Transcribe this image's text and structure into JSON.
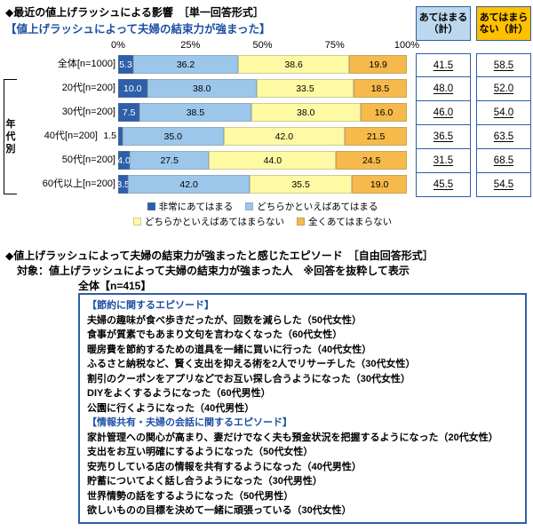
{
  "header": {
    "title": "◆最近の値上げラッシュによる影響　［単一回答形式］",
    "subtitle": "【値上げラッシュによって夫婦の結束力が強まった】"
  },
  "chart_data": {
    "type": "bar",
    "stacked": true,
    "orientation": "horizontal",
    "xlim": [
      0,
      100
    ],
    "grid": false,
    "legend_position": "bottom",
    "axis_ticks": [
      "0%",
      "25%",
      "50%",
      "75%",
      "100%"
    ],
    "group_label": "年代別",
    "categories": [
      "全体[n=1000]",
      "20代[n=200]",
      "30代[n=200]",
      "40代[n=200]",
      "50代[n=200]",
      "60代以上[n=200]"
    ],
    "series": [
      {
        "name": "非常にあてはまる",
        "color": "#2D5FAA",
        "label_color": "#FFFFFF",
        "values": [
          5.3,
          10.0,
          7.5,
          1.5,
          4.0,
          3.5
        ]
      },
      {
        "name": "どちらかといえばあてはまる",
        "color": "#9CC7EA",
        "label_color": "#000000",
        "values": [
          36.2,
          38.0,
          38.5,
          35.0,
          27.5,
          42.0
        ]
      },
      {
        "name": "どちらかといえばあてはまらない",
        "color": "#FEF9A3",
        "label_color": "#000000",
        "values": [
          38.6,
          33.5,
          38.0,
          42.0,
          44.0,
          35.5
        ]
      },
      {
        "name": "全くあてはまらない",
        "color": "#F5BA4B",
        "label_color": "#000000",
        "values": [
          19.9,
          18.5,
          16.0,
          21.5,
          24.5,
          19.0
        ]
      }
    ],
    "summary_columns": [
      {
        "header": "あてはまる（計）",
        "bg": "#BDD7EE",
        "values": [
          41.5,
          48.0,
          46.0,
          36.5,
          31.5,
          45.5
        ]
      },
      {
        "header": "あてはまらない（計）",
        "bg": "#FFC000",
        "values": [
          58.5,
          52.0,
          54.0,
          63.5,
          68.5,
          54.5
        ]
      }
    ],
    "legend_rows": [
      [
        0,
        1
      ],
      [
        2,
        3
      ]
    ]
  },
  "episodes": {
    "title": "◆値上げラッシュによって夫婦の結束力が強まったと感じたエピソード　［自由回答形式］",
    "target": "対象：値上げラッシュによって夫婦の結束力が強まった人　※回答を抜粋して表示",
    "base": "全体【n=415】",
    "sections": [
      {
        "header": "【節約に関するエピソード】",
        "items": [
          "夫婦の趣味が食べ歩きだったが、回数を減らした（50代女性）",
          "食事が質素でもあまり文句を言わなくなった（60代女性）",
          "暖房費を節約するための道具を一緒に買いに行った（40代女性）",
          "ふるさと納税など、賢く支出を抑える術を2人でリサーチした（30代女性）",
          "割引のクーポンをアプリなどでお互い探し合うようになった（30代女性）",
          "DIYをよくするようになった（60代男性）",
          "公園に行くようになった（40代男性）"
        ]
      },
      {
        "header": "【情報共有・夫婦の会話に関するエピソード】",
        "items": [
          "家計管理への関心が高まり、妻だけでなく夫も預金状況を把握するようになった（20代女性）",
          "支出をお互い明確にするようになった（50代女性）",
          "安売りしている店の情報を共有するようになった（40代男性）",
          "貯蓄についてよく話し合うようになった（30代男性）",
          "世界情勢の話をするようになった（50代男性）",
          "欲しいものの目標を決めて一緒に頑張っている（30代女性）"
        ]
      }
    ]
  },
  "colors": {
    "accent_blue": "#1D50A2",
    "table_border": "#2E5FA3",
    "summary_agree_bg": "#BDD7EE",
    "summary_disagree_bg": "#FFC000"
  }
}
